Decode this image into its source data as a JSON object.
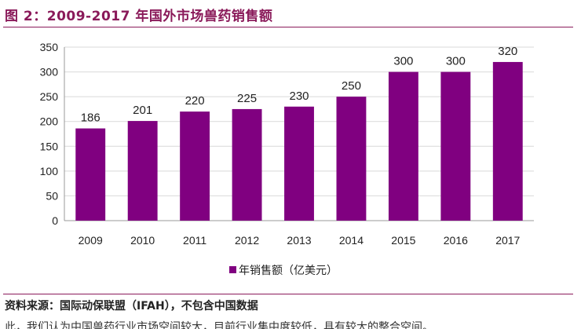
{
  "figure": {
    "title": "图 2：2009-2017 年国外市场兽药销售额",
    "source": "资料来源：国际动保联盟（IFAH），不包含中国数据",
    "footer_partial": "此，我们认为中国兽药行业市场空间较大，目前行业集中度较低，具有较大的整合空间。"
  },
  "chart_data": {
    "type": "bar",
    "title": "",
    "xlabel": "",
    "ylabel": "",
    "ylim": [
      0,
      350
    ],
    "yticks": [
      0,
      50,
      100,
      150,
      200,
      250,
      300,
      350
    ],
    "categories": [
      "2009",
      "2010",
      "2011",
      "2012",
      "2013",
      "2014",
      "2015",
      "2016",
      "2017"
    ],
    "series": [
      {
        "name": "年销售额（亿美元）",
        "color": "#800080",
        "values": [
          186,
          201,
          220,
          225,
          230,
          250,
          300,
          300,
          320
        ]
      }
    ],
    "grid": true,
    "legend_position": "bottom-center",
    "data_labels": true
  }
}
